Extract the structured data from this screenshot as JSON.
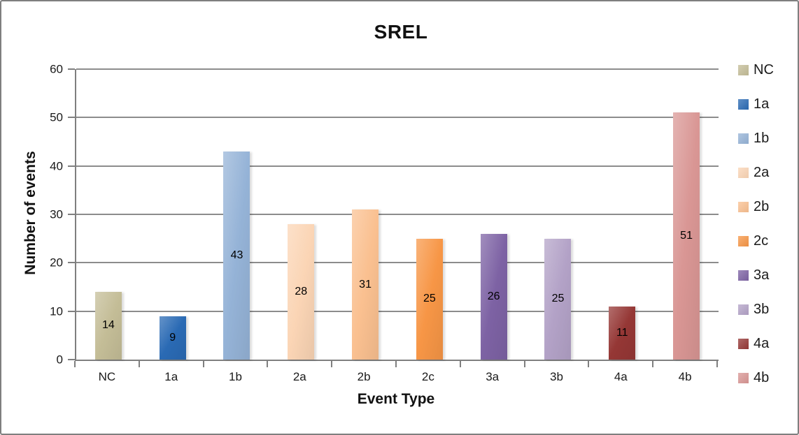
{
  "chart": {
    "background": "#ffffff",
    "frame_border_color": "#7f7f7f",
    "gridline_color": "#8c8c8c",
    "axis_color": "#7f7f7f"
  },
  "chart_data": {
    "type": "bar",
    "title": "SREL",
    "xlabel": "Event Type",
    "ylabel": "Number of events",
    "categories": [
      "NC",
      "1a",
      "1b",
      "2a",
      "2b",
      "2c",
      "3a",
      "3b",
      "4a",
      "4b"
    ],
    "values": [
      14,
      9,
      43,
      28,
      31,
      25,
      26,
      25,
      11,
      51
    ],
    "bar_colors": [
      "#c4bd97",
      "#2a6ab4",
      "#95b3d7",
      "#fbd5b5",
      "#fac090",
      "#f79646",
      "#7d62a4",
      "#b3a2c7",
      "#953735",
      "#d99694"
    ],
    "ylim": [
      0,
      60
    ],
    "yticks": [
      0,
      10,
      20,
      30,
      40,
      50,
      60
    ],
    "grid": true,
    "data_labels": true,
    "legend_position": "right",
    "legend": [
      "NC",
      "1a",
      "1b",
      "2a",
      "2b",
      "2c",
      "3a",
      "3b",
      "4a",
      "4b"
    ]
  }
}
